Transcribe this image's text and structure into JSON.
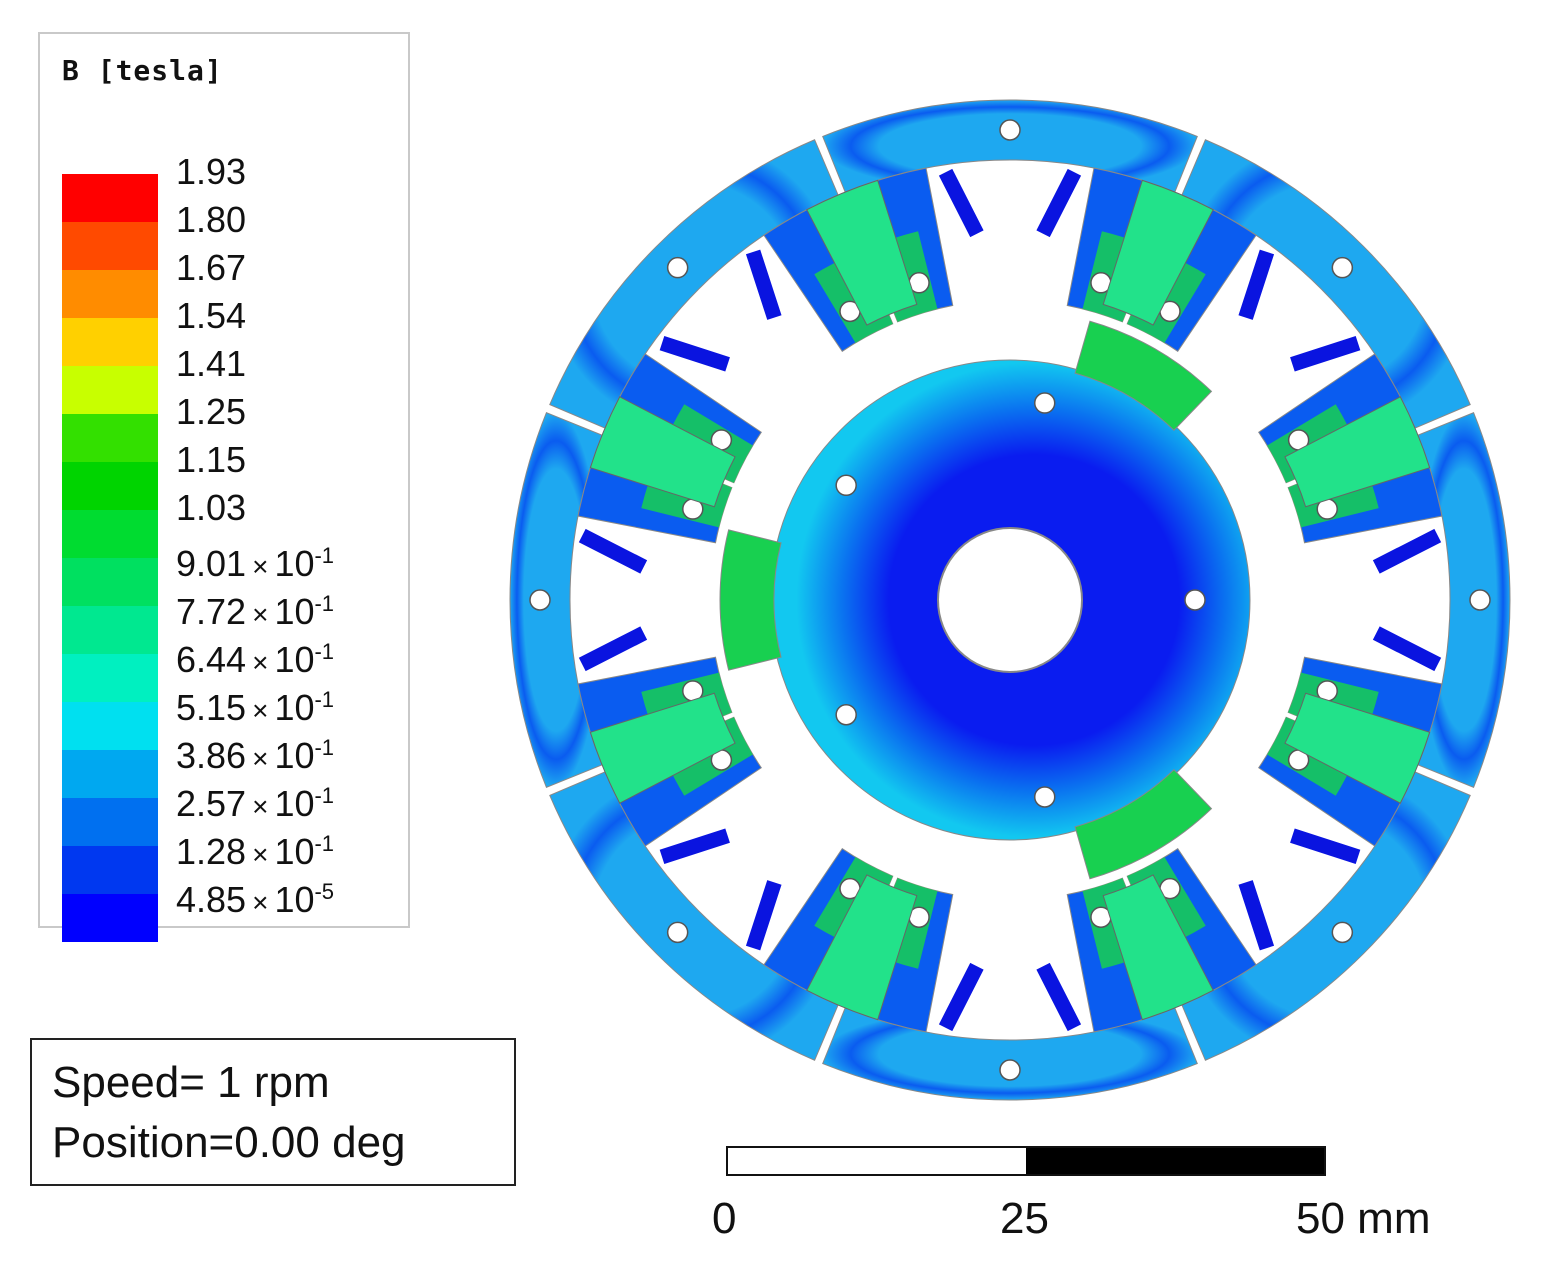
{
  "legend": {
    "title": "B [tesla]",
    "levels": [
      {
        "mantissa": "1.93",
        "exp": "",
        "color": "#ff0000"
      },
      {
        "mantissa": "1.80",
        "exp": "",
        "color": "#ff4a00"
      },
      {
        "mantissa": "1.67",
        "exp": "",
        "color": "#ff8c00"
      },
      {
        "mantissa": "1.54",
        "exp": "",
        "color": "#ffd000"
      },
      {
        "mantissa": "1.41",
        "exp": "",
        "color": "#c8ff00"
      },
      {
        "mantissa": "1.25",
        "exp": "",
        "color": "#33e000"
      },
      {
        "mantissa": "1.15",
        "exp": "",
        "color": "#00d400"
      },
      {
        "mantissa": "1.03",
        "exp": "",
        "color": "#00dc30"
      },
      {
        "mantissa": "9.01",
        "exp": "-1",
        "color": "#00e060"
      },
      {
        "mantissa": "7.72",
        "exp": "-1",
        "color": "#00e890"
      },
      {
        "mantissa": "6.44",
        "exp": "-1",
        "color": "#00f0c0"
      },
      {
        "mantissa": "5.15",
        "exp": "-1",
        "color": "#00e0f0"
      },
      {
        "mantissa": "3.86",
        "exp": "-1",
        "color": "#00a8f0"
      },
      {
        "mantissa": "2.57",
        "exp": "-1",
        "color": "#0070f0"
      },
      {
        "mantissa": "1.28",
        "exp": "-1",
        "color": "#0038f0"
      },
      {
        "mantissa": "4.85",
        "exp": "-5",
        "color": "#0000ff"
      }
    ],
    "times_symbol": "x 10"
  },
  "info": {
    "speed": "Speed= 1 rpm",
    "position": "Position=0.00 deg"
  },
  "scale": {
    "labels": [
      "0",
      "25",
      "50 mm"
    ]
  },
  "colors": {
    "stator_base": "#0a5cf0",
    "stator_light": "#1ea8f0",
    "yoke": "#22e28a",
    "tooth_green": "#18d050",
    "rotor_core": "#0a1cf0",
    "rotor_mid": "#0a70f0",
    "rotor_outer": "#12c8f0",
    "magnet": "#0a14e0"
  }
}
